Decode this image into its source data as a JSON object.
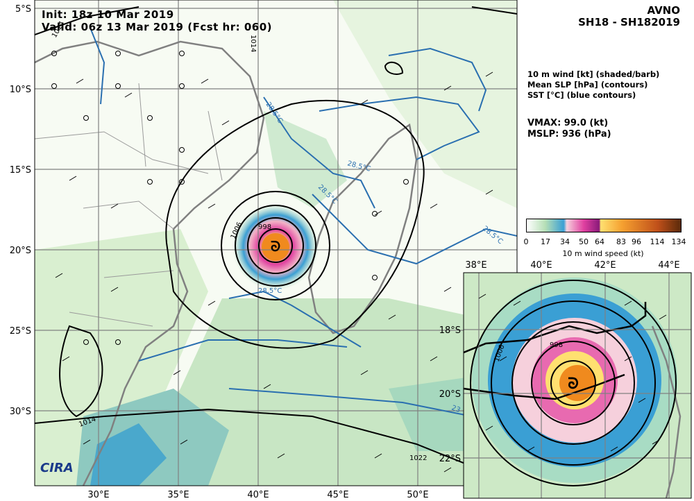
{
  "header": {
    "init": "Init:  18z 10 Mar 2019",
    "valid": "Valid: 06z 13 Mar 2019 (Fcst hr: 060)",
    "model": "AVNO",
    "storm": "SH18 - SH182019"
  },
  "legend": {
    "line1": "10 m wind [kt] (shaded/barb)",
    "line2": "Mean SLP [hPa] (contours)",
    "line3": "SST [°C] (blue contours)"
  },
  "stats": {
    "vmax": "VMAX:  99.0 (kt)",
    "mslp": "MSLP:  936 (hPa)"
  },
  "colorbar": {
    "ticks": [
      "0",
      "17",
      "34",
      "50",
      "64",
      "83",
      "96",
      "114",
      "134"
    ],
    "label": "10 m wind speed (kt)",
    "colors": [
      "#ffffff",
      "#b6dfb6",
      "#3a9fd4",
      "#f2b4c6",
      "#e040a0",
      "#ffe070",
      "#f08a1e",
      "#c0501a",
      "#5a2a0a"
    ]
  },
  "main_map": {
    "lon_labels": [
      "30°E",
      "35°E",
      "40°E",
      "45°E",
      "50°E"
    ],
    "lat_labels": [
      "5°S",
      "10°S",
      "15°S",
      "20°S",
      "25°S",
      "30°S"
    ],
    "slp_labels": [
      "1014",
      "1014",
      "1006",
      "998",
      "1022",
      "1014"
    ],
    "sst_labels": [
      "28.5°C",
      "28.5°C",
      "28.5°C",
      "28.5°C",
      "28.5°C",
      "23"
    ]
  },
  "inset_map": {
    "lon_labels": [
      "38°E",
      "40°E",
      "42°E",
      "44°E"
    ],
    "lat_labels": [
      "18°S",
      "20°S",
      "22°S"
    ],
    "slp_labels": [
      "1006",
      "998"
    ]
  },
  "logo": {
    "text": "CIRA"
  }
}
